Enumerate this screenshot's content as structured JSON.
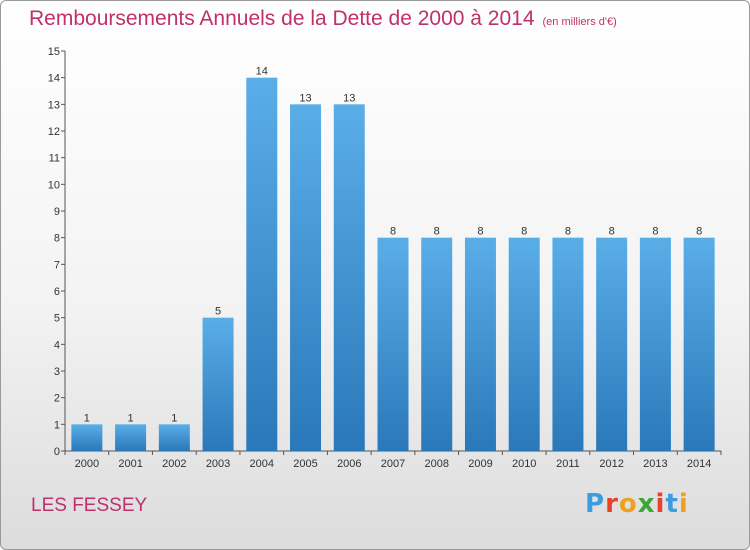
{
  "header": {
    "title": "Remboursements Annuels de la Dette de 2000 à 2014",
    "unit": "(en milliers d'€)"
  },
  "footer": {
    "commune": "LES FESSEY",
    "logo": "Proxiti"
  },
  "colors": {
    "title": "#c0306a",
    "bar_top": "#5aaee8",
    "bar_bottom": "#2a78b9",
    "logo_letters": [
      "#3a9de0",
      "#e8422b",
      "#f0a020",
      "#39a935",
      "#e8422b",
      "#3a9de0",
      "#f0a020"
    ]
  },
  "chart_data": {
    "type": "bar",
    "categories": [
      "2000",
      "2001",
      "2002",
      "2003",
      "2004",
      "2005",
      "2006",
      "2007",
      "2008",
      "2009",
      "2010",
      "2011",
      "2012",
      "2013",
      "2014"
    ],
    "values": [
      1,
      1,
      1,
      5,
      14,
      13,
      13,
      8,
      8,
      8,
      8,
      8,
      8,
      8,
      8
    ],
    "ylim": [
      0,
      15
    ],
    "yticks": [
      0,
      1,
      2,
      3,
      4,
      5,
      6,
      7,
      8,
      9,
      10,
      11,
      12,
      13,
      14,
      15
    ],
    "title": "Remboursements Annuels de la Dette de 2000 à 2014",
    "xlabel": "",
    "ylabel": "",
    "grid": false,
    "data_labels": true
  }
}
